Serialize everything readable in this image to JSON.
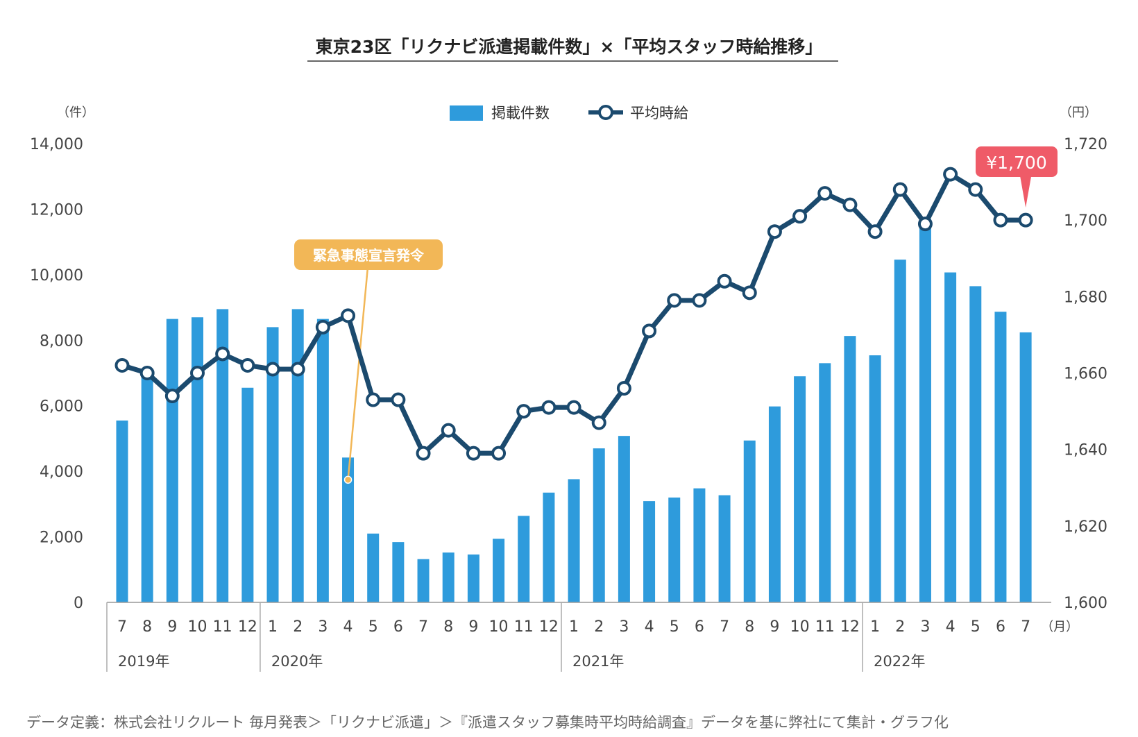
{
  "chart_data": {
    "type": "bar+line",
    "title": "東京23区「リクナビ派遣掲載件数」×「平均スタッフ時給推移」",
    "left_unit": "（件）",
    "right_unit": "（円）",
    "month_unit": "（月）",
    "legend": {
      "bar_label": "掲載件数",
      "line_label": "平均時給"
    },
    "y_left": {
      "min": 0,
      "max": 14000,
      "ticks": [
        "0",
        "2,000",
        "4,000",
        "6,000",
        "8,000",
        "10,000",
        "12,000",
        "14,000"
      ]
    },
    "y_right": {
      "min": 1600,
      "max": 1720,
      "ticks": [
        "1,600",
        "1,620",
        "1,640",
        "1,660",
        "1,680",
        "1,700",
        "1,720"
      ]
    },
    "months": [
      "7",
      "8",
      "9",
      "10",
      "11",
      "12",
      "1",
      "2",
      "3",
      "4",
      "5",
      "6",
      "7",
      "8",
      "9",
      "10",
      "11",
      "12",
      "1",
      "2",
      "3",
      "4",
      "5",
      "6",
      "7",
      "8",
      "9",
      "10",
      "11",
      "12",
      "1",
      "2",
      "3",
      "4",
      "5",
      "6",
      "7"
    ],
    "years": [
      {
        "label": "2019年",
        "start_index": 0
      },
      {
        "label": "2020年",
        "start_index": 6
      },
      {
        "label": "2021年",
        "start_index": 18
      },
      {
        "label": "2022年",
        "start_index": 30
      }
    ],
    "series": [
      {
        "name": "掲載件数",
        "kind": "bar",
        "color": "#2e9bdc",
        "values": [
          5550,
          7050,
          8650,
          8700,
          8950,
          6550,
          8400,
          8950,
          8650,
          4420,
          2100,
          1840,
          1320,
          1520,
          1460,
          1940,
          2640,
          3350,
          3760,
          4700,
          5080,
          3090,
          3200,
          3480,
          3270,
          4940,
          5980,
          6900,
          7300,
          8130,
          7540,
          10460,
          11700,
          10070,
          9650,
          8870,
          8240
        ]
      },
      {
        "name": "平均時給",
        "kind": "line",
        "color": "#1b4a6e",
        "values": [
          1662,
          1660,
          1654,
          1660,
          1665,
          1662,
          1661,
          1661,
          1672,
          1675,
          1653,
          1653,
          1639,
          1645,
          1639,
          1639,
          1650,
          1651,
          1651,
          1647,
          1656,
          1671,
          1679,
          1679,
          1684,
          1681,
          1697,
          1701,
          1707,
          1704,
          1697,
          1708,
          1699,
          1712,
          1708,
          1700,
          1700
        ]
      }
    ],
    "annotations": [
      {
        "text": "緊急事態宣言発令",
        "index": 9,
        "color": "#f2b757"
      },
      {
        "text": "¥1,700",
        "index": 36,
        "color": "#ef5b68"
      }
    ]
  },
  "footer": "データ定義：株式会社リクルート 毎月発表＞「リクナビ派遣」＞『派遣スタッフ募集時平均時給調査』データを基に弊社にて集計・グラフ化"
}
